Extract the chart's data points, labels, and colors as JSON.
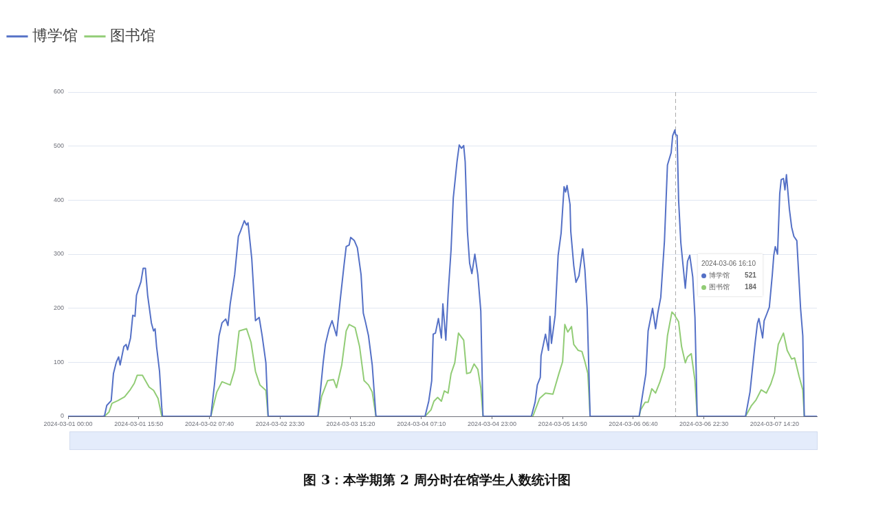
{
  "chart_data": {
    "type": "line",
    "title": "图 3：本学期第 2 周分时在馆学生人数统计图",
    "xlim": [
      "2024-03-01T00:00",
      "2024-03-07T23:50"
    ],
    "xticks": [
      {
        "value": "2024-03-01T00:00",
        "label": "2024-03-01 00:00"
      },
      {
        "value": "2024-03-01T15:50",
        "label": "2024-03-01 15:50"
      },
      {
        "value": "2024-03-02T07:40",
        "label": "2024-03-02 07:40"
      },
      {
        "value": "2024-03-02T23:30",
        "label": "2024-03-02 23:30"
      },
      {
        "value": "2024-03-03T15:20",
        "label": "2024-03-03 15:20"
      },
      {
        "value": "2024-03-04T07:10",
        "label": "2024-03-04 07:10"
      },
      {
        "value": "2024-03-04T23:00",
        "label": "2024-03-04 23:00"
      },
      {
        "value": "2024-03-05T14:50",
        "label": "2024-03-05 14:50"
      },
      {
        "value": "2024-03-06T06:40",
        "label": "2024-03-06 06:40"
      },
      {
        "value": "2024-03-06T22:30",
        "label": "2024-03-06 22:30"
      },
      {
        "value": "2024-03-07T14:20",
        "label": "2024-03-07 14:20"
      }
    ],
    "ylim": [
      0,
      600
    ],
    "yticks": [
      0,
      100,
      200,
      300,
      400,
      500,
      600
    ],
    "grid": "y",
    "legend": "top left",
    "marker": "none",
    "line_style": "solid",
    "annotations": [
      "2024-03-06 16:10\n博学馆 521\n图书馆 184"
    ],
    "ref_lines": [
      {
        "axis": "x",
        "value": "2024-03-06T16:10",
        "color": "#aaaaaa",
        "line_style": "dashed"
      }
    ],
    "series": [
      {
        "name": "博学馆",
        "color": "#5470c6",
        "x": [
          "2024-03-01T00:00",
          "2024-03-01T07:50",
          "2024-03-01T08:10",
          "2024-03-01T08:40",
          "2024-03-01T09:40",
          "2024-03-01T10:10",
          "2024-03-01T10:50",
          "2024-03-01T11:20",
          "2024-03-01T11:40",
          "2024-03-01T12:30",
          "2024-03-01T13:00",
          "2024-03-01T13:20",
          "2024-03-01T14:00",
          "2024-03-01T14:30",
          "2024-03-01T15:00",
          "2024-03-01T15:20",
          "2024-03-01T15:50",
          "2024-03-01T16:20",
          "2024-03-01T16:50",
          "2024-03-01T17:20",
          "2024-03-01T17:50",
          "2024-03-01T18:40",
          "2024-03-01T19:10",
          "2024-03-01T19:30",
          "2024-03-01T19:50",
          "2024-03-01T20:30",
          "2024-03-01T21:00",
          "2024-03-01T21:10",
          "2024-03-02T08:00",
          "2024-03-02T08:50",
          "2024-03-02T09:20",
          "2024-03-02T09:50",
          "2024-03-02T10:30",
          "2024-03-02T11:20",
          "2024-03-02T11:50",
          "2024-03-02T12:20",
          "2024-03-02T13:20",
          "2024-03-02T14:10",
          "2024-03-02T14:40",
          "2024-03-02T15:30",
          "2024-03-02T16:00",
          "2024-03-02T16:20",
          "2024-03-02T17:10",
          "2024-03-02T18:00",
          "2024-03-02T18:50",
          "2024-03-02T19:30",
          "2024-03-02T20:20",
          "2024-03-02T20:50",
          "2024-03-03T08:00",
          "2024-03-03T09:10",
          "2024-03-03T09:40",
          "2024-03-03T10:30",
          "2024-03-03T11:10",
          "2024-03-03T12:10",
          "2024-03-03T13:00",
          "2024-03-03T13:50",
          "2024-03-03T14:20",
          "2024-03-03T15:00",
          "2024-03-03T15:20",
          "2024-03-03T16:10",
          "2024-03-03T16:50",
          "2024-03-03T17:40",
          "2024-03-03T18:10",
          "2024-03-03T18:40",
          "2024-03-03T19:20",
          "2024-03-03T20:10",
          "2024-03-03T21:00",
          "2024-03-04T08:00",
          "2024-03-04T08:50",
          "2024-03-04T09:30",
          "2024-03-04T09:50",
          "2024-03-04T10:20",
          "2024-03-04T11:00",
          "2024-03-04T11:40",
          "2024-03-04T12:00",
          "2024-03-04T12:40",
          "2024-03-04T13:10",
          "2024-03-04T13:50",
          "2024-03-04T14:20",
          "2024-03-04T15:10",
          "2024-03-04T15:40",
          "2024-03-04T16:10",
          "2024-03-04T16:40",
          "2024-03-04T17:00",
          "2024-03-04T17:30",
          "2024-03-04T18:00",
          "2024-03-04T18:30",
          "2024-03-04T19:10",
          "2024-03-04T19:50",
          "2024-03-04T20:30",
          "2024-03-04T21:00",
          "2024-03-05T07:50",
          "2024-03-05T08:40",
          "2024-03-05T09:10",
          "2024-03-05T09:50",
          "2024-03-05T10:00",
          "2024-03-05T11:00",
          "2024-03-05T11:40",
          "2024-03-05T12:00",
          "2024-03-05T12:20",
          "2024-03-05T13:10",
          "2024-03-05T13:50",
          "2024-03-05T14:30",
          "2024-03-05T15:10",
          "2024-03-05T15:30",
          "2024-03-05T15:50",
          "2024-03-05T16:30",
          "2024-03-05T16:40",
          "2024-03-05T17:20",
          "2024-03-05T17:50",
          "2024-03-05T18:30",
          "2024-03-05T19:20",
          "2024-03-05T19:50",
          "2024-03-05T20:20",
          "2024-03-05T21:00",
          "2024-03-06T08:00",
          "2024-03-06T09:00",
          "2024-03-06T09:30",
          "2024-03-06T10:00",
          "2024-03-06T11:00",
          "2024-03-06T11:40",
          "2024-03-06T12:10",
          "2024-03-06T12:50",
          "2024-03-06T13:40",
          "2024-03-06T14:20",
          "2024-03-06T15:10",
          "2024-03-06T15:30",
          "2024-03-06T16:00",
          "2024-03-06T16:10",
          "2024-03-06T16:30",
          "2024-03-06T16:50",
          "2024-03-06T17:20",
          "2024-03-06T18:20",
          "2024-03-06T18:50",
          "2024-03-06T19:20",
          "2024-03-06T20:00",
          "2024-03-06T20:30",
          "2024-03-06T21:00",
          "2024-03-07T07:50",
          "2024-03-07T08:50",
          "2024-03-07T10:00",
          "2024-03-07T10:30",
          "2024-03-07T10:50",
          "2024-03-07T11:40",
          "2024-03-07T12:00",
          "2024-03-07T12:40",
          "2024-03-07T13:10",
          "2024-03-07T13:50",
          "2024-03-07T14:10",
          "2024-03-07T14:30",
          "2024-03-07T15:00",
          "2024-03-07T15:30",
          "2024-03-07T15:50",
          "2024-03-07T16:20",
          "2024-03-07T16:40",
          "2024-03-07T17:00",
          "2024-03-07T17:40",
          "2024-03-07T18:10",
          "2024-03-07T18:40",
          "2024-03-07T19:20",
          "2024-03-07T20:10",
          "2024-03-07T20:40",
          "2024-03-07T21:00",
          "2024-03-07T23:50"
        ],
        "values": [
          0,
          0,
          1,
          20,
          29,
          79,
          101,
          110,
          95,
          129,
          133,
          123,
          145,
          187,
          185,
          224,
          237,
          249,
          274,
          274,
          224,
          173,
          158,
          162,
          129,
          83,
          16,
          0,
          0,
          61,
          108,
          149,
          173,
          180,
          168,
          208,
          262,
          333,
          343,
          362,
          354,
          358,
          292,
          177,
          183,
          149,
          99,
          0,
          0,
          99,
          133,
          162,
          177,
          149,
          216,
          279,
          314,
          317,
          331,
          325,
          312,
          262,
          191,
          174,
          149,
          95,
          0,
          0,
          28,
          66,
          152,
          154,
          181,
          145,
          208,
          141,
          225,
          308,
          404,
          471,
          502,
          496,
          501,
          471,
          342,
          283,
          264,
          300,
          262,
          195,
          0,
          0,
          26,
          58,
          72,
          112,
          152,
          122,
          185,
          135,
          187,
          298,
          339,
          425,
          415,
          427,
          392,
          342,
          279,
          248,
          260,
          310,
          271,
          200,
          0,
          0,
          53,
          79,
          158,
          200,
          162,
          191,
          220,
          325,
          465,
          488,
          519,
          530,
          521,
          520,
          400,
          321,
          237,
          287,
          298,
          258,
          183,
          0,
          0,
          45,
          137,
          172,
          181,
          145,
          177,
          191,
          202,
          262,
          298,
          314,
          300,
          412,
          438,
          440,
          419,
          447,
          383,
          350,
          333,
          325,
          200,
          149,
          0,
          0
        ]
      },
      {
        "name": "图书馆",
        "color": "#91cc75",
        "x": [
          "2024-03-01T00:00",
          "2024-03-01T08:10",
          "2024-03-01T09:10",
          "2024-03-01T09:50",
          "2024-03-01T11:10",
          "2024-03-01T12:40",
          "2024-03-01T13:50",
          "2024-03-01T14:50",
          "2024-03-01T15:30",
          "2024-03-01T16:40",
          "2024-03-01T17:20",
          "2024-03-01T18:10",
          "2024-03-01T19:10",
          "2024-03-01T20:10",
          "2024-03-01T21:00",
          "2024-03-02T08:00",
          "2024-03-02T09:20",
          "2024-03-02T10:30",
          "2024-03-02T12:20",
          "2024-03-02T13:20",
          "2024-03-02T14:20",
          "2024-03-02T16:00",
          "2024-03-02T17:00",
          "2024-03-02T18:00",
          "2024-03-02T19:00",
          "2024-03-02T20:20",
          "2024-03-02T20:50",
          "2024-03-03T08:00",
          "2024-03-03T08:50",
          "2024-03-03T10:10",
          "2024-03-03T11:30",
          "2024-03-03T12:10",
          "2024-03-03T13:20",
          "2024-03-03T14:20",
          "2024-03-03T15:00",
          "2024-03-03T16:20",
          "2024-03-03T17:20",
          "2024-03-03T18:20",
          "2024-03-03T19:20",
          "2024-03-03T20:10",
          "2024-03-03T21:00",
          "2024-03-04T08:00",
          "2024-03-04T09:20",
          "2024-03-04T10:00",
          "2024-03-04T10:50",
          "2024-03-04T11:40",
          "2024-03-04T12:20",
          "2024-03-04T13:10",
          "2024-03-04T13:50",
          "2024-03-04T14:40",
          "2024-03-04T15:30",
          "2024-03-04T16:40",
          "2024-03-04T17:20",
          "2024-03-04T18:10",
          "2024-03-04T19:00",
          "2024-03-04T19:50",
          "2024-03-04T20:30",
          "2024-03-04T21:00",
          "2024-03-05T08:10",
          "2024-03-05T09:40",
          "2024-03-05T11:00",
          "2024-03-05T12:40",
          "2024-03-05T14:00",
          "2024-03-05T14:50",
          "2024-03-05T15:20",
          "2024-03-05T16:00",
          "2024-03-05T16:50",
          "2024-03-05T17:20",
          "2024-03-05T18:20",
          "2024-03-05T19:10",
          "2024-03-05T19:50",
          "2024-03-05T20:30",
          "2024-03-05T21:00",
          "2024-03-06T08:00",
          "2024-03-06T08:20",
          "2024-03-06T09:20",
          "2024-03-06T10:00",
          "2024-03-06T10:50",
          "2024-03-06T11:40",
          "2024-03-06T12:40",
          "2024-03-06T13:40",
          "2024-03-06T14:20",
          "2024-03-06T15:20",
          "2024-03-06T16:00",
          "2024-03-06T16:10",
          "2024-03-06T16:50",
          "2024-03-06T17:30",
          "2024-03-06T18:20",
          "2024-03-06T18:50",
          "2024-03-06T19:40",
          "2024-03-06T20:30",
          "2024-03-06T21:00",
          "2024-03-07T07:50",
          "2024-03-07T09:10",
          "2024-03-07T10:10",
          "2024-03-07T11:20",
          "2024-03-07T12:30",
          "2024-03-07T13:30",
          "2024-03-07T14:20",
          "2024-03-07T15:10",
          "2024-03-07T16:20",
          "2024-03-07T17:10",
          "2024-03-07T18:10",
          "2024-03-07T18:50",
          "2024-03-07T19:50",
          "2024-03-07T20:40",
          "2024-03-07T21:00",
          "2024-03-07T23:50"
        ],
        "values": [
          0,
          0,
          8,
          24,
          29,
          36,
          48,
          61,
          76,
          76,
          66,
          54,
          48,
          33,
          0,
          0,
          45,
          64,
          58,
          86,
          158,
          162,
          137,
          83,
          58,
          48,
          0,
          0,
          37,
          66,
          68,
          53,
          95,
          158,
          170,
          164,
          129,
          66,
          58,
          45,
          0,
          0,
          12,
          28,
          35,
          28,
          47,
          43,
          79,
          99,
          154,
          141,
          79,
          81,
          97,
          87,
          53,
          0,
          0,
          33,
          43,
          41,
          79,
          101,
          170,
          156,
          166,
          133,
          122,
          120,
          101,
          79,
          0,
          0,
          12,
          26,
          26,
          51,
          43,
          64,
          91,
          149,
          193,
          187,
          184,
          175,
          129,
          99,
          110,
          116,
          66,
          0,
          0,
          20,
          30,
          49,
          43,
          60,
          81,
          133,
          154,
          122,
          106,
          108,
          74,
          49,
          0,
          0
        ]
      }
    ]
  }
}
